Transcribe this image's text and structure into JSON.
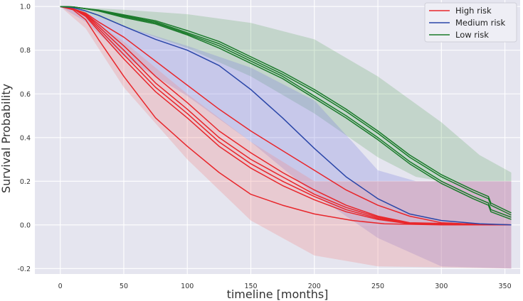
{
  "chart_data": {
    "type": "line",
    "title": "",
    "xlabel": "timeline [months]",
    "ylabel": "Survival Probability",
    "xlim": [
      -20,
      362
    ],
    "ylim": [
      -0.225,
      1.03
    ],
    "xticks": [
      0,
      50,
      100,
      150,
      200,
      250,
      300,
      350
    ],
    "yticks": [
      -0.2,
      0.0,
      0.2,
      0.4,
      0.6,
      0.8,
      1.0
    ],
    "grid": true,
    "legend_position": "top-right",
    "background": "#e5e5ef",
    "legend": [
      {
        "label": "High risk",
        "color": "#e8262b"
      },
      {
        "label": "Medium risk",
        "color": "#2a46a8"
      },
      {
        "label": "Low risk",
        "color": "#1a7a2a"
      }
    ],
    "bands": [
      {
        "group": "Low risk",
        "color": "#4f9f4f",
        "opacity": 0.22,
        "upper": [
          [
            0,
            1.0
          ],
          [
            20,
            0.995
          ],
          [
            50,
            0.985
          ],
          [
            100,
            0.965
          ],
          [
            150,
            0.925
          ],
          [
            200,
            0.85
          ],
          [
            250,
            0.68
          ],
          [
            300,
            0.47
          ],
          [
            330,
            0.32
          ],
          [
            355,
            0.24
          ]
        ],
        "lower": [
          [
            0,
            1.0
          ],
          [
            20,
            0.97
          ],
          [
            50,
            0.91
          ],
          [
            100,
            0.81
          ],
          [
            150,
            0.68
          ],
          [
            200,
            0.51
          ],
          [
            250,
            0.31
          ],
          [
            280,
            0.22
          ],
          [
            300,
            0.2
          ],
          [
            355,
            0.2
          ]
        ]
      },
      {
        "group": "Medium risk",
        "color": "#7b7fe0",
        "opacity": 0.28,
        "upper": [
          [
            0,
            1.0
          ],
          [
            20,
            0.97
          ],
          [
            50,
            0.91
          ],
          [
            100,
            0.82
          ],
          [
            150,
            0.72
          ],
          [
            200,
            0.57
          ],
          [
            230,
            0.38
          ],
          [
            250,
            0.25
          ],
          [
            280,
            0.2
          ],
          [
            355,
            0.2
          ]
        ],
        "lower": [
          [
            0,
            1.0
          ],
          [
            20,
            0.93
          ],
          [
            50,
            0.77
          ],
          [
            100,
            0.59
          ],
          [
            150,
            0.38
          ],
          [
            200,
            0.14
          ],
          [
            250,
            -0.06
          ],
          [
            300,
            -0.19
          ],
          [
            355,
            -0.2
          ]
        ]
      },
      {
        "group": "High risk",
        "color": "#f08a8a",
        "opacity": 0.3,
        "upper": [
          [
            0,
            1.0
          ],
          [
            20,
            0.96
          ],
          [
            50,
            0.84
          ],
          [
            100,
            0.6
          ],
          [
            150,
            0.38
          ],
          [
            200,
            0.2
          ],
          [
            210,
            0.2
          ],
          [
            355,
            0.2
          ]
        ],
        "lower": [
          [
            0,
            1.0
          ],
          [
            20,
            0.9
          ],
          [
            50,
            0.63
          ],
          [
            100,
            0.3
          ],
          [
            150,
            0.02
          ],
          [
            200,
            -0.14
          ],
          [
            250,
            -0.19
          ],
          [
            355,
            -0.2
          ]
        ]
      }
    ],
    "series": [
      {
        "group": "High risk",
        "color": "#e8262b",
        "points": [
          [
            0,
            1.0
          ],
          [
            10,
            0.985
          ],
          [
            20,
            0.94
          ],
          [
            30,
            0.85
          ],
          [
            50,
            0.68
          ],
          [
            75,
            0.49
          ],
          [
            100,
            0.36
          ],
          [
            125,
            0.24
          ],
          [
            150,
            0.14
          ],
          [
            175,
            0.09
          ],
          [
            200,
            0.05
          ],
          [
            230,
            0.02
          ],
          [
            255,
            0.005
          ],
          [
            300,
            0.0
          ],
          [
            355,
            0.0
          ]
        ]
      },
      {
        "group": "High risk",
        "color": "#e8262b",
        "points": [
          [
            0,
            1.0
          ],
          [
            10,
            0.99
          ],
          [
            20,
            0.955
          ],
          [
            30,
            0.89
          ],
          [
            50,
            0.76
          ],
          [
            75,
            0.61
          ],
          [
            100,
            0.49
          ],
          [
            125,
            0.36
          ],
          [
            150,
            0.26
          ],
          [
            175,
            0.18
          ],
          [
            200,
            0.115
          ],
          [
            225,
            0.06
          ],
          [
            250,
            0.025
          ],
          [
            275,
            0.005
          ],
          [
            355,
            0.0
          ]
        ]
      },
      {
        "group": "High risk",
        "color": "#e8262b",
        "points": [
          [
            0,
            1.0
          ],
          [
            10,
            0.99
          ],
          [
            20,
            0.96
          ],
          [
            30,
            0.9
          ],
          [
            50,
            0.78
          ],
          [
            75,
            0.63
          ],
          [
            100,
            0.51
          ],
          [
            125,
            0.38
          ],
          [
            150,
            0.28
          ],
          [
            175,
            0.2
          ],
          [
            200,
            0.13
          ],
          [
            225,
            0.07
          ],
          [
            250,
            0.03
          ],
          [
            275,
            0.006
          ],
          [
            355,
            0.0
          ]
        ]
      },
      {
        "group": "High risk",
        "color": "#e8262b",
        "points": [
          [
            0,
            1.0
          ],
          [
            10,
            0.99
          ],
          [
            20,
            0.965
          ],
          [
            30,
            0.91
          ],
          [
            50,
            0.8
          ],
          [
            75,
            0.65
          ],
          [
            100,
            0.53
          ],
          [
            125,
            0.4
          ],
          [
            150,
            0.3
          ],
          [
            175,
            0.22
          ],
          [
            200,
            0.14
          ],
          [
            225,
            0.08
          ],
          [
            250,
            0.035
          ],
          [
            275,
            0.008
          ],
          [
            355,
            0.0
          ]
        ]
      },
      {
        "group": "High risk",
        "color": "#e8262b",
        "points": [
          [
            0,
            1.0
          ],
          [
            10,
            0.99
          ],
          [
            20,
            0.965
          ],
          [
            30,
            0.92
          ],
          [
            50,
            0.82
          ],
          [
            75,
            0.68
          ],
          [
            100,
            0.56
          ],
          [
            125,
            0.43
          ],
          [
            150,
            0.33
          ],
          [
            175,
            0.24
          ],
          [
            200,
            0.16
          ],
          [
            225,
            0.09
          ],
          [
            250,
            0.04
          ],
          [
            275,
            0.01
          ],
          [
            355,
            0.0
          ]
        ]
      },
      {
        "group": "High risk",
        "color": "#e8262b",
        "points": [
          [
            0,
            1.0
          ],
          [
            10,
            0.99
          ],
          [
            20,
            0.97
          ],
          [
            30,
            0.93
          ],
          [
            50,
            0.86
          ],
          [
            75,
            0.75
          ],
          [
            100,
            0.64
          ],
          [
            125,
            0.53
          ],
          [
            150,
            0.43
          ],
          [
            175,
            0.34
          ],
          [
            200,
            0.25
          ],
          [
            225,
            0.16
          ],
          [
            250,
            0.09
          ],
          [
            275,
            0.04
          ],
          [
            300,
            0.01
          ],
          [
            330,
            0.002
          ],
          [
            355,
            0.0
          ]
        ]
      },
      {
        "group": "Medium risk",
        "color": "#2a46a8",
        "points": [
          [
            0,
            1.0
          ],
          [
            10,
            0.995
          ],
          [
            20,
            0.98
          ],
          [
            30,
            0.96
          ],
          [
            50,
            0.91
          ],
          [
            75,
            0.85
          ],
          [
            100,
            0.8
          ],
          [
            125,
            0.73
          ],
          [
            150,
            0.62
          ],
          [
            175,
            0.49
          ],
          [
            200,
            0.35
          ],
          [
            225,
            0.22
          ],
          [
            250,
            0.12
          ],
          [
            275,
            0.05
          ],
          [
            300,
            0.02
          ],
          [
            330,
            0.005
          ],
          [
            355,
            0.0
          ]
        ]
      },
      {
        "group": "Low risk",
        "color": "#1a7a2a",
        "points": [
          [
            0,
            1.0
          ],
          [
            10,
            0.998
          ],
          [
            20,
            0.99
          ],
          [
            30,
            0.98
          ],
          [
            50,
            0.95
          ],
          [
            75,
            0.92
          ],
          [
            100,
            0.87
          ],
          [
            125,
            0.81
          ],
          [
            150,
            0.74
          ],
          [
            175,
            0.67
          ],
          [
            200,
            0.58
          ],
          [
            225,
            0.49
          ],
          [
            250,
            0.39
          ],
          [
            275,
            0.28
          ],
          [
            300,
            0.19
          ],
          [
            325,
            0.12
          ],
          [
            337,
            0.09
          ],
          [
            339,
            0.06
          ],
          [
            355,
            0.025
          ]
        ]
      },
      {
        "group": "Low risk",
        "color": "#1a7a2a",
        "points": [
          [
            0,
            1.0
          ],
          [
            10,
            0.998
          ],
          [
            20,
            0.99
          ],
          [
            30,
            0.98
          ],
          [
            50,
            0.955
          ],
          [
            75,
            0.925
          ],
          [
            100,
            0.875
          ],
          [
            125,
            0.82
          ],
          [
            150,
            0.75
          ],
          [
            175,
            0.68
          ],
          [
            200,
            0.59
          ],
          [
            225,
            0.5
          ],
          [
            250,
            0.4
          ],
          [
            275,
            0.29
          ],
          [
            300,
            0.2
          ],
          [
            325,
            0.13
          ],
          [
            337,
            0.1
          ],
          [
            339,
            0.07
          ],
          [
            355,
            0.035
          ]
        ]
      },
      {
        "group": "Low risk",
        "color": "#1a7a2a",
        "points": [
          [
            0,
            1.0
          ],
          [
            10,
            0.998
          ],
          [
            20,
            0.99
          ],
          [
            30,
            0.982
          ],
          [
            50,
            0.958
          ],
          [
            75,
            0.93
          ],
          [
            100,
            0.88
          ],
          [
            125,
            0.83
          ],
          [
            150,
            0.76
          ],
          [
            175,
            0.69
          ],
          [
            200,
            0.61
          ],
          [
            225,
            0.52
          ],
          [
            250,
            0.42
          ],
          [
            275,
            0.31
          ],
          [
            300,
            0.22
          ],
          [
            325,
            0.15
          ],
          [
            337,
            0.12
          ],
          [
            339,
            0.09
          ],
          [
            355,
            0.045
          ]
        ]
      },
      {
        "group": "Low risk",
        "color": "#1a7a2a",
        "points": [
          [
            0,
            1.0
          ],
          [
            10,
            0.998
          ],
          [
            20,
            0.99
          ],
          [
            30,
            0.984
          ],
          [
            50,
            0.962
          ],
          [
            75,
            0.935
          ],
          [
            100,
            0.89
          ],
          [
            125,
            0.84
          ],
          [
            150,
            0.77
          ],
          [
            175,
            0.7
          ],
          [
            200,
            0.62
          ],
          [
            225,
            0.53
          ],
          [
            250,
            0.43
          ],
          [
            275,
            0.32
          ],
          [
            300,
            0.23
          ],
          [
            325,
            0.16
          ],
          [
            337,
            0.13
          ],
          [
            339,
            0.1
          ],
          [
            355,
            0.055
          ]
        ]
      }
    ]
  }
}
